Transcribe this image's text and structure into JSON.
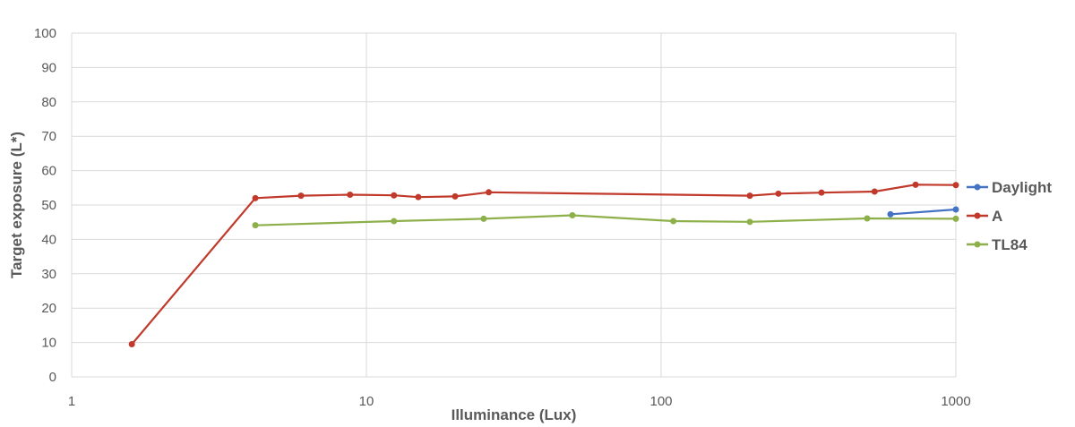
{
  "chart_data": {
    "type": "line",
    "xlabel": "Illuminance (Lux)",
    "ylabel": "Target exposure (L*)",
    "x_scale": "log",
    "xlim": [
      1,
      1000
    ],
    "ylim": [
      0,
      100
    ],
    "x_ticks": [
      "1",
      "10",
      "100",
      "1000"
    ],
    "y_ticks": [
      "0",
      "10",
      "20",
      "30",
      "40",
      "50",
      "60",
      "70",
      "80",
      "90",
      "100"
    ],
    "grid": true,
    "legend_position": "right",
    "series": [
      {
        "name": "Daylight",
        "color": "#4472c4",
        "x": [
          600,
          1000
        ],
        "y": [
          47.3,
          48.7
        ]
      },
      {
        "name": "A",
        "color": "#c0392b",
        "x": [
          1.6,
          4.2,
          6,
          8.8,
          12.4,
          15,
          20,
          26,
          200,
          250,
          350,
          530,
          730,
          1000
        ],
        "y": [
          9.5,
          52,
          52.7,
          53,
          52.8,
          52.3,
          52.5,
          53.7,
          52.7,
          53.3,
          53.6,
          53.9,
          55.9,
          55.8
        ]
      },
      {
        "name": "TL84",
        "color": "#8db04a",
        "x": [
          4.2,
          12.4,
          25,
          50,
          110,
          200,
          500,
          1000
        ],
        "y": [
          44.1,
          45.3,
          46,
          47,
          45.3,
          45.1,
          46.1,
          46
        ]
      }
    ]
  }
}
